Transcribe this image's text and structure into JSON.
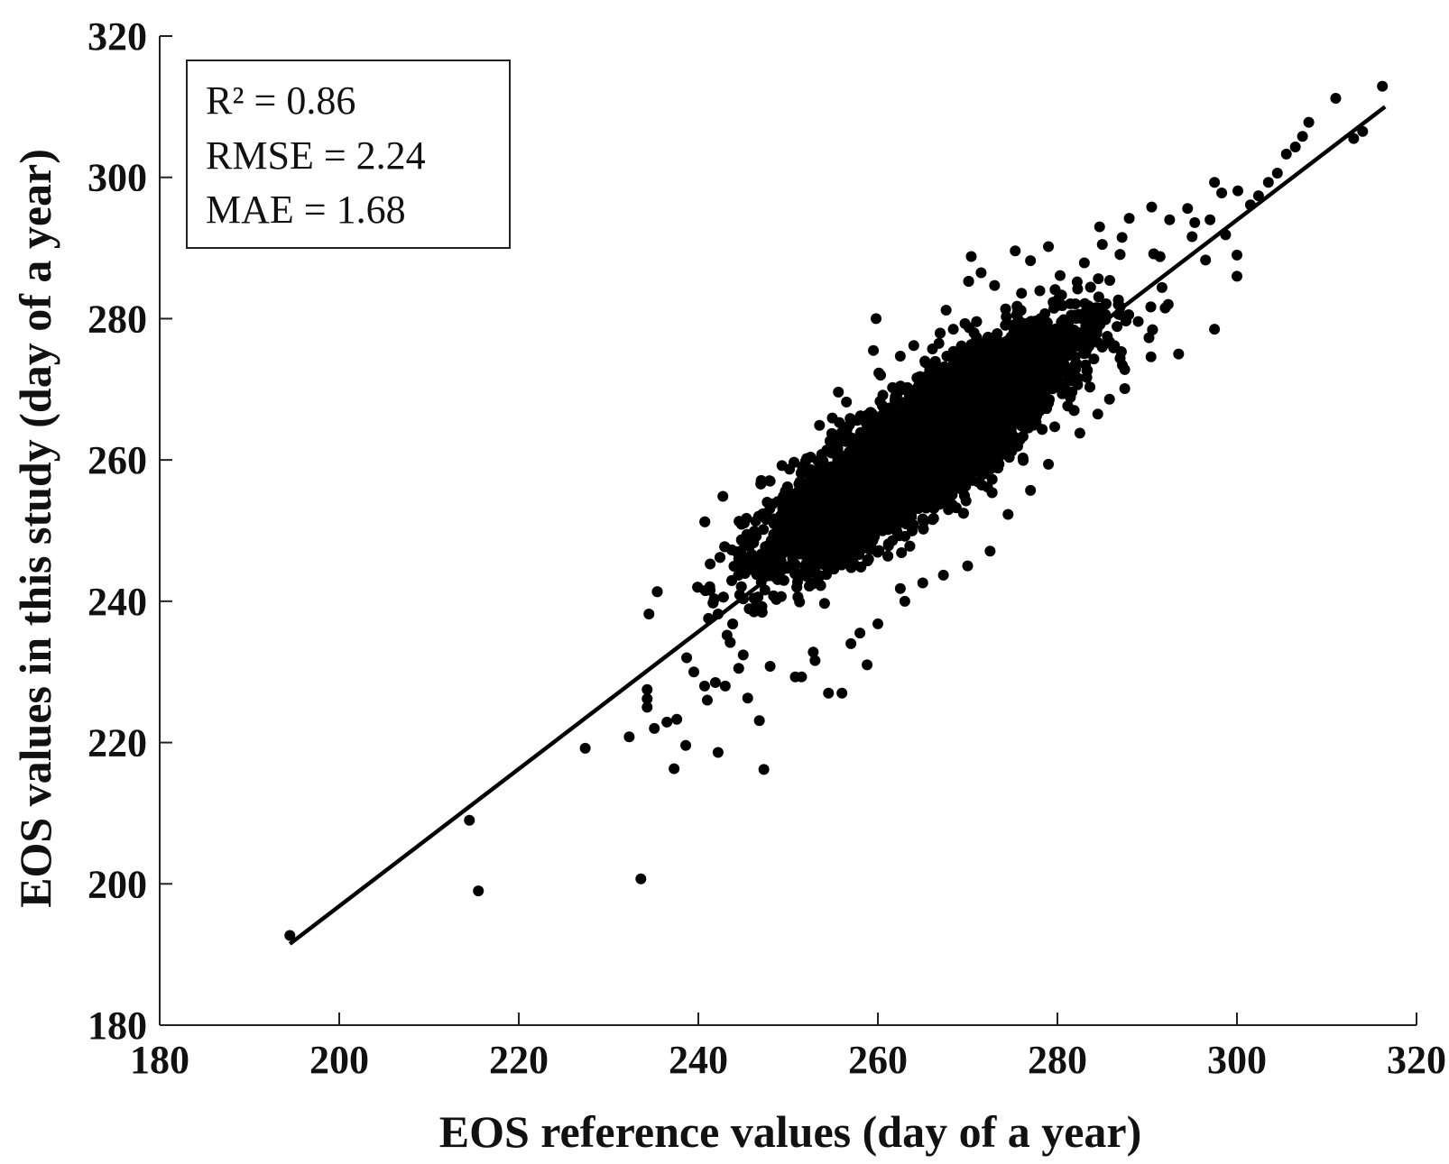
{
  "chart_data": {
    "type": "scatter",
    "title": "",
    "xlabel": "EOS reference values (day of a year)",
    "ylabel": "EOS values in this study (day of a year)",
    "xlim": [
      180,
      320
    ],
    "ylim": [
      180,
      320
    ],
    "x_ticks": [
      180,
      200,
      220,
      240,
      260,
      280,
      300,
      320
    ],
    "y_ticks": [
      180,
      200,
      220,
      240,
      260,
      280,
      300,
      320
    ],
    "grid": false,
    "legend": "none",
    "colors": {
      "points": "#000000",
      "line": "#000000",
      "axes": "#222222"
    },
    "stats": [
      "R² = 0.86",
      "RMSE = 2.24",
      "MAE = 1.68"
    ],
    "stats_placement": "top-left",
    "fit_line": {
      "x": [
        194.5,
        316.5
      ],
      "y": [
        191.5,
        310.0
      ]
    },
    "cloud": {
      "description_free": true,
      "cx": 265,
      "cy": 262,
      "major_slope": 1.0,
      "major_sd": 10.5,
      "minor_sd": 3.0,
      "count": 9000
    },
    "outliers": [
      [
        194.5,
        192.7
      ],
      [
        214.5,
        209.0
      ],
      [
        215.5,
        199.0
      ],
      [
        227.4,
        219.2
      ],
      [
        232.3,
        220.8
      ],
      [
        233.6,
        200.7
      ],
      [
        234.5,
        238.2
      ],
      [
        234.3,
        227.5
      ],
      [
        234.3,
        226.2
      ],
      [
        234.3,
        225.0
      ],
      [
        235.1,
        222.0
      ],
      [
        236.5,
        222.9
      ],
      [
        237.3,
        216.3
      ],
      [
        237.6,
        223.3
      ],
      [
        238.6,
        219.6
      ],
      [
        242.2,
        218.6
      ],
      [
        246.8,
        223.1
      ],
      [
        247.3,
        216.2
      ],
      [
        245.5,
        226.3
      ],
      [
        241.9,
        228.5
      ],
      [
        244.5,
        230.5
      ],
      [
        251.5,
        229.3
      ],
      [
        256.0,
        227.0
      ],
      [
        258.8,
        231.0
      ],
      [
        252.8,
        232.8
      ],
      [
        253.5,
        257.2
      ],
      [
        247.0,
        257.1
      ],
      [
        248.0,
        257.0
      ],
      [
        250.0,
        254.5
      ],
      [
        255.6,
        269.6
      ],
      [
        256.5,
        268.2
      ],
      [
        259.8,
        280.0
      ],
      [
        259.5,
        275.5
      ],
      [
        260.3,
        272.0
      ],
      [
        270.4,
        288.8
      ],
      [
        271.5,
        286.5
      ],
      [
        273.0,
        284.7
      ],
      [
        275.3,
        289.6
      ],
      [
        277.0,
        288.2
      ],
      [
        279.0,
        290.2
      ],
      [
        267.6,
        281.2
      ],
      [
        268.4,
        278.5
      ],
      [
        282.2,
        285.2
      ],
      [
        284.7,
        293.0
      ],
      [
        287.2,
        291.5
      ],
      [
        288.0,
        294.2
      ],
      [
        290.5,
        295.8
      ],
      [
        292.5,
        294.0
      ],
      [
        294.5,
        295.6
      ],
      [
        295.3,
        293.6
      ],
      [
        297.5,
        299.3
      ],
      [
        298.3,
        297.8
      ],
      [
        300.1,
        298.1
      ],
      [
        301.5,
        296.1
      ],
      [
        302.4,
        297.4
      ],
      [
        303.5,
        299.3
      ],
      [
        304.5,
        300.6
      ],
      [
        305.5,
        303.3
      ],
      [
        306.5,
        304.3
      ],
      [
        307.3,
        305.8
      ],
      [
        308.0,
        307.8
      ],
      [
        311.0,
        311.2
      ],
      [
        313.0,
        305.5
      ],
      [
        314.0,
        306.5
      ],
      [
        316.2,
        312.9
      ],
      [
        300.0,
        289.0
      ],
      [
        300.0,
        286.0
      ],
      [
        297.5,
        278.5
      ],
      [
        293.5,
        275.0
      ],
      [
        287.0,
        281.7
      ],
      [
        289.0,
        279.6
      ],
      [
        287.5,
        272.8
      ],
      [
        287.5,
        270.1
      ],
      [
        284.5,
        266.5
      ],
      [
        282.5,
        263.8
      ],
      [
        279.0,
        259.4
      ],
      [
        277.0,
        255.7
      ],
      [
        274.5,
        252.3
      ],
      [
        272.5,
        247.1
      ],
      [
        270.0,
        245.0
      ],
      [
        267.3,
        243.7
      ],
      [
        265.0,
        242.6
      ],
      [
        263.0,
        240.0
      ],
      [
        262.5,
        241.8
      ],
      [
        260.0,
        236.8
      ],
      [
        258.0,
        235.5
      ],
      [
        257.0,
        234.0
      ],
      [
        254.5,
        227.0
      ],
      [
        253.0,
        231.6
      ],
      [
        250.8,
        229.3
      ],
      [
        248.0,
        230.8
      ],
      [
        245.0,
        232.4
      ],
      [
        243.2,
        235.2
      ],
      [
        246.2,
        238.5
      ],
      [
        240.7,
        228.0
      ],
      [
        239.5,
        230.0
      ],
      [
        238.7,
        232.0
      ],
      [
        241.0,
        226.0
      ],
      [
        243.0,
        228.0
      ],
      [
        242.2,
        238.2
      ],
      [
        244.8,
        248.7
      ],
      [
        247.2,
        252.4
      ],
      [
        248.3,
        253.8
      ],
      [
        251.2,
        256.6
      ],
      [
        252.5,
        260.4
      ],
      [
        255.0,
        262.7
      ],
      [
        253.5,
        264.9
      ],
      [
        257.0,
        265.8
      ],
      [
        262.5,
        274.7
      ],
      [
        264.0,
        276.2
      ],
      [
        266.8,
        276.5
      ],
      [
        269.7,
        279.3
      ],
      [
        276.0,
        283.6
      ],
      [
        280.3,
        286.1
      ],
      [
        283.0,
        287.9
      ],
      [
        285.0,
        290.5
      ],
      [
        295.0,
        291.6
      ],
      [
        297.0,
        294.0
      ],
      [
        279.7,
        264.7
      ],
      [
        285.8,
        268.6
      ],
      [
        290.2,
        277.3
      ],
      [
        292.0,
        281.5
      ],
      [
        296.5,
        288.3
      ]
    ]
  }
}
